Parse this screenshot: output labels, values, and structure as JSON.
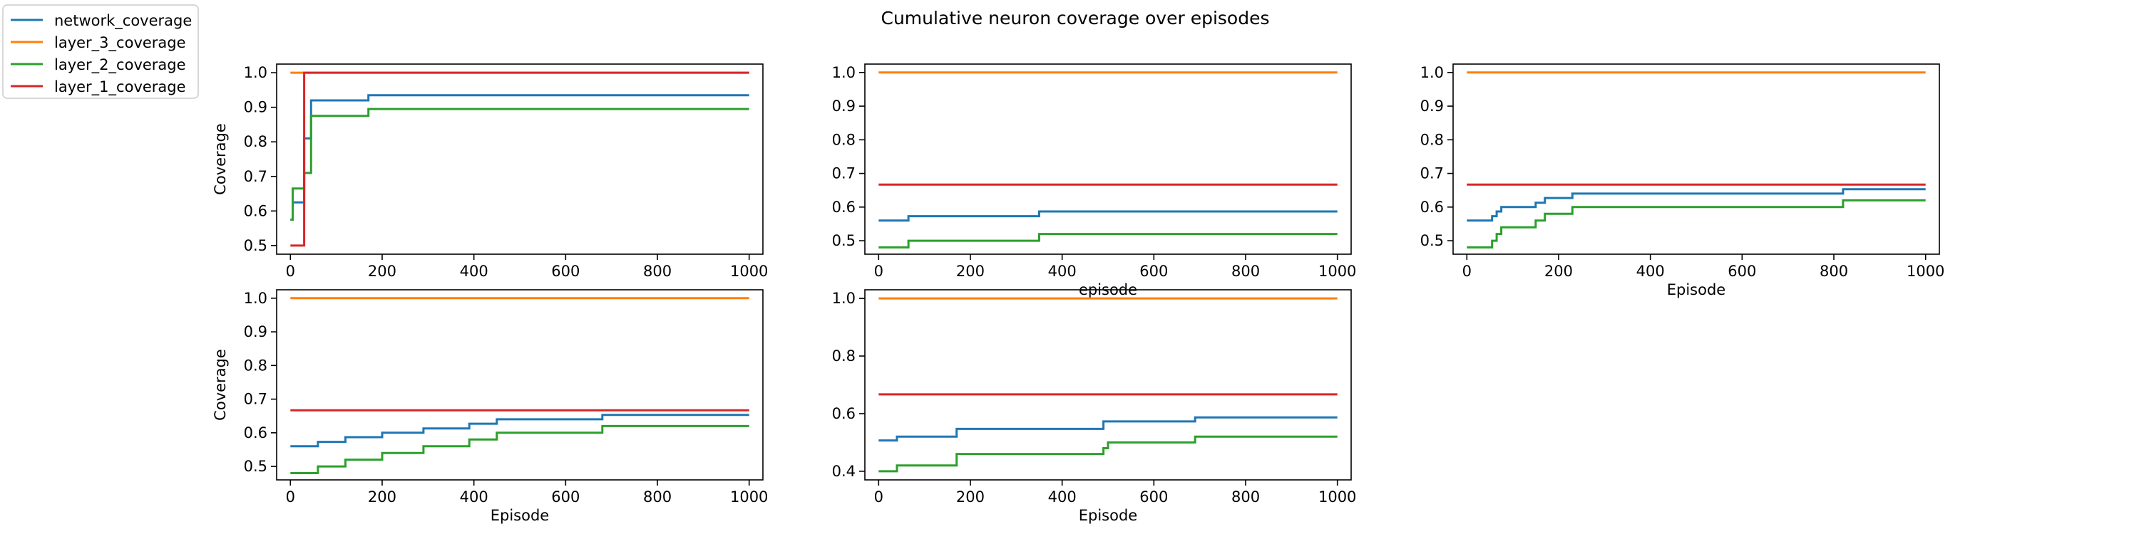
{
  "figure": {
    "suptitle": "Cumulative neuron coverage over episodes"
  },
  "legend": {
    "placement": "upper-left",
    "entries": [
      {
        "label": "network_coverage",
        "color": "#1f77b4"
      },
      {
        "label": "layer_3_coverage",
        "color": "#ff7f0e"
      },
      {
        "label": "layer_2_coverage",
        "color": "#2ca02c"
      },
      {
        "label": "layer_1_coverage",
        "color": "#d62728"
      }
    ]
  },
  "chart_data": [
    {
      "type": "line",
      "step": true,
      "xlabel": "",
      "ylabel": "Coverage",
      "xlim": [
        -30,
        1030
      ],
      "ylim": [
        0.475,
        1.025
      ],
      "xticks": [
        0,
        200,
        400,
        600,
        800,
        1000
      ],
      "yticks": [
        0.5,
        0.6,
        0.7,
        0.8,
        0.9,
        1.0
      ],
      "series": [
        {
          "name": "network_coverage",
          "color": "#1f77b4",
          "x": [
            0,
            5,
            30,
            45,
            170,
            1000
          ],
          "y": [
            0.575,
            0.625,
            0.81,
            0.92,
            0.935,
            0.935
          ]
        },
        {
          "name": "layer_3_coverage",
          "color": "#ff7f0e",
          "x": [
            0,
            1000
          ],
          "y": [
            1.0,
            1.0
          ]
        },
        {
          "name": "layer_2_coverage",
          "color": "#2ca02c",
          "x": [
            0,
            5,
            30,
            45,
            170,
            1000
          ],
          "y": [
            0.575,
            0.665,
            0.71,
            0.875,
            0.895,
            0.895
          ]
        },
        {
          "name": "layer_1_coverage",
          "color": "#d62728",
          "x": [
            0,
            30,
            1000
          ],
          "y": [
            0.5,
            1.0,
            1.0
          ]
        }
      ]
    },
    {
      "type": "line",
      "step": true,
      "xlabel": "episode",
      "ylabel": "",
      "xlim": [
        -30,
        1030
      ],
      "ylim": [
        0.46,
        1.025
      ],
      "xticks": [
        0,
        200,
        400,
        600,
        800,
        1000
      ],
      "yticks": [
        0.5,
        0.6,
        0.7,
        0.8,
        0.9,
        1.0
      ],
      "series": [
        {
          "name": "network_coverage",
          "color": "#1f77b4",
          "x": [
            0,
            65,
            350,
            1000
          ],
          "y": [
            0.56,
            0.573,
            0.587,
            0.587
          ]
        },
        {
          "name": "layer_3_coverage",
          "color": "#ff7f0e",
          "x": [
            0,
            1000
          ],
          "y": [
            1.0,
            1.0
          ]
        },
        {
          "name": "layer_2_coverage",
          "color": "#2ca02c",
          "x": [
            0,
            65,
            350,
            1000
          ],
          "y": [
            0.48,
            0.5,
            0.52,
            0.52
          ]
        },
        {
          "name": "layer_1_coverage",
          "color": "#d62728",
          "x": [
            0,
            1000
          ],
          "y": [
            0.667,
            0.667
          ]
        }
      ]
    },
    {
      "type": "line",
      "step": true,
      "xlabel": "Episode",
      "ylabel": "",
      "xlim": [
        -30,
        1030
      ],
      "ylim": [
        0.46,
        1.025
      ],
      "xticks": [
        0,
        200,
        400,
        600,
        800,
        1000
      ],
      "yticks": [
        0.5,
        0.6,
        0.7,
        0.8,
        0.9,
        1.0
      ],
      "series": [
        {
          "name": "network_coverage",
          "color": "#1f77b4",
          "x": [
            0,
            55,
            65,
            75,
            90,
            150,
            170,
            230,
            820,
            1000
          ],
          "y": [
            0.56,
            0.573,
            0.587,
            0.6,
            0.6,
            0.613,
            0.627,
            0.64,
            0.653,
            0.653
          ]
        },
        {
          "name": "layer_3_coverage",
          "color": "#ff7f0e",
          "x": [
            0,
            1000
          ],
          "y": [
            1.0,
            1.0
          ]
        },
        {
          "name": "layer_2_coverage",
          "color": "#2ca02c",
          "x": [
            0,
            55,
            65,
            75,
            90,
            150,
            170,
            230,
            820,
            1000
          ],
          "y": [
            0.48,
            0.5,
            0.52,
            0.54,
            0.54,
            0.56,
            0.58,
            0.6,
            0.62,
            0.62
          ]
        },
        {
          "name": "layer_1_coverage",
          "color": "#d62728",
          "x": [
            0,
            1000
          ],
          "y": [
            0.667,
            0.667
          ]
        }
      ]
    },
    {
      "type": "line",
      "step": true,
      "xlabel": "Episode",
      "ylabel": "Coverage",
      "xlim": [
        -30,
        1030
      ],
      "ylim": [
        0.46,
        1.025
      ],
      "xticks": [
        0,
        200,
        400,
        600,
        800,
        1000
      ],
      "yticks": [
        0.5,
        0.6,
        0.7,
        0.8,
        0.9,
        1.0
      ],
      "series": [
        {
          "name": "network_coverage",
          "color": "#1f77b4",
          "x": [
            0,
            60,
            120,
            200,
            290,
            390,
            450,
            680,
            1000
          ],
          "y": [
            0.56,
            0.573,
            0.587,
            0.6,
            0.613,
            0.627,
            0.64,
            0.653,
            0.653
          ]
        },
        {
          "name": "layer_3_coverage",
          "color": "#ff7f0e",
          "x": [
            0,
            1000
          ],
          "y": [
            1.0,
            1.0
          ]
        },
        {
          "name": "layer_2_coverage",
          "color": "#2ca02c",
          "x": [
            0,
            60,
            120,
            200,
            290,
            390,
            450,
            680,
            1000
          ],
          "y": [
            0.48,
            0.5,
            0.52,
            0.54,
            0.56,
            0.58,
            0.6,
            0.62,
            0.62
          ]
        },
        {
          "name": "layer_1_coverage",
          "color": "#d62728",
          "x": [
            0,
            1000
          ],
          "y": [
            0.667,
            0.667
          ]
        }
      ]
    },
    {
      "type": "line",
      "step": true,
      "xlabel": "Episode",
      "ylabel": "",
      "xlim": [
        -30,
        1030
      ],
      "ylim": [
        0.37,
        1.03
      ],
      "xticks": [
        0,
        200,
        400,
        600,
        800,
        1000
      ],
      "yticks": [
        0.4,
        0.6,
        0.8,
        1.0
      ],
      "series": [
        {
          "name": "network_coverage",
          "color": "#1f77b4",
          "x": [
            0,
            40,
            170,
            490,
            690,
            1000
          ],
          "y": [
            0.507,
            0.52,
            0.547,
            0.573,
            0.587,
            0.587
          ]
        },
        {
          "name": "layer_3_coverage",
          "color": "#ff7f0e",
          "x": [
            0,
            1000
          ],
          "y": [
            1.0,
            1.0
          ]
        },
        {
          "name": "layer_2_coverage",
          "color": "#2ca02c",
          "x": [
            0,
            40,
            170,
            490,
            500,
            690,
            1000
          ],
          "y": [
            0.4,
            0.42,
            0.46,
            0.48,
            0.5,
            0.52,
            0.52
          ]
        },
        {
          "name": "layer_1_coverage",
          "color": "#d62728",
          "x": [
            0,
            1000
          ],
          "y": [
            0.667,
            0.667
          ]
        }
      ]
    }
  ]
}
